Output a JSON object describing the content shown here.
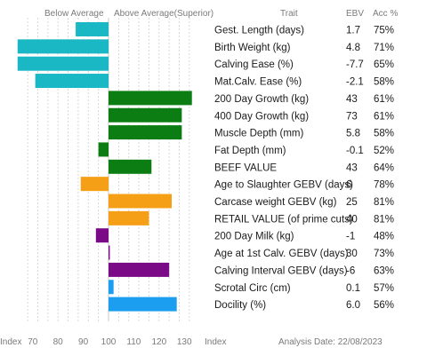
{
  "header": {
    "below_average": "Below Average",
    "above_average": "Above Average(Superior)",
    "trait": "Trait",
    "ebv": "EBV",
    "acc": "Acc %"
  },
  "footer": {
    "index_left": "Index",
    "index_right": "Index",
    "analysis_date": "Analysis Date: 22/08/2023"
  },
  "chart_data": {
    "type": "bar",
    "orientation": "horizontal",
    "baseline": 100,
    "xlim": [
      64,
      140
    ],
    "xticks": [
      70,
      80,
      90,
      100,
      110,
      120,
      130
    ],
    "grid": true,
    "rows": [
      {
        "trait": "Gest. Length (days)",
        "ebv": "1.7",
        "acc": "75%",
        "index": 87,
        "color": "#1ab7c4"
      },
      {
        "trait": "Birth Weight (kg)",
        "ebv": "4.8",
        "acc": "71%",
        "index": 64,
        "color": "#1ab7c4"
      },
      {
        "trait": "Calving Ease (%)",
        "ebv": "-7.7",
        "acc": "65%",
        "index": 64,
        "color": "#1ab7c4"
      },
      {
        "trait": "Mat.Calv. Ease (%)",
        "ebv": "-2.1",
        "acc": "58%",
        "index": 71,
        "color": "#1ab7c4"
      },
      {
        "trait": "200 Day Growth (kg)",
        "ebv": "43",
        "acc": "61%",
        "index": 133,
        "color": "#0b7d12"
      },
      {
        "trait": "400 Day Growth (kg)",
        "ebv": "73",
        "acc": "61%",
        "index": 129,
        "color": "#0b7d12"
      },
      {
        "trait": "Muscle Depth (mm)",
        "ebv": "5.8",
        "acc": "58%",
        "index": 129,
        "color": "#0b7d12"
      },
      {
        "trait": "Fat Depth (mm)",
        "ebv": "-0.1",
        "acc": "52%",
        "index": 96,
        "color": "#0b7d12"
      },
      {
        "trait": "BEEF VALUE",
        "ebv": "43",
        "acc": "64%",
        "index": 117,
        "color": "#0b7d12"
      },
      {
        "trait": "Age to Slaughter GEBV (days)",
        "ebv": "6",
        "acc": "78%",
        "index": 89,
        "color": "#f59f16"
      },
      {
        "trait": "Carcase weight GEBV (kg)",
        "ebv": "25",
        "acc": "81%",
        "index": 125,
        "color": "#f59f16"
      },
      {
        "trait": "RETAIL VALUE (of prime cuts)",
        "ebv": "40",
        "acc": "81%",
        "index": 116,
        "color": "#f59f16"
      },
      {
        "trait": "200 Day Milk (kg)",
        "ebv": "-1",
        "acc": "48%",
        "index": 95,
        "color": "#7a0a86"
      },
      {
        "trait": "Age at 1st Calv. GEBV (days)",
        "ebv": "30",
        "acc": "73%",
        "index": 100.5,
        "color": "#7a0a86"
      },
      {
        "trait": "Calving Interval GEBV (days)",
        "ebv": "-6",
        "acc": "63%",
        "index": 124,
        "color": "#7a0a86"
      },
      {
        "trait": "Scrotal Circ (cm)",
        "ebv": "0.1",
        "acc": "57%",
        "index": 102,
        "color": "#1b9ef0"
      },
      {
        "trait": "Docility (%)",
        "ebv": "6.0",
        "acc": "56%",
        "index": 127,
        "color": "#1b9ef0"
      }
    ]
  }
}
